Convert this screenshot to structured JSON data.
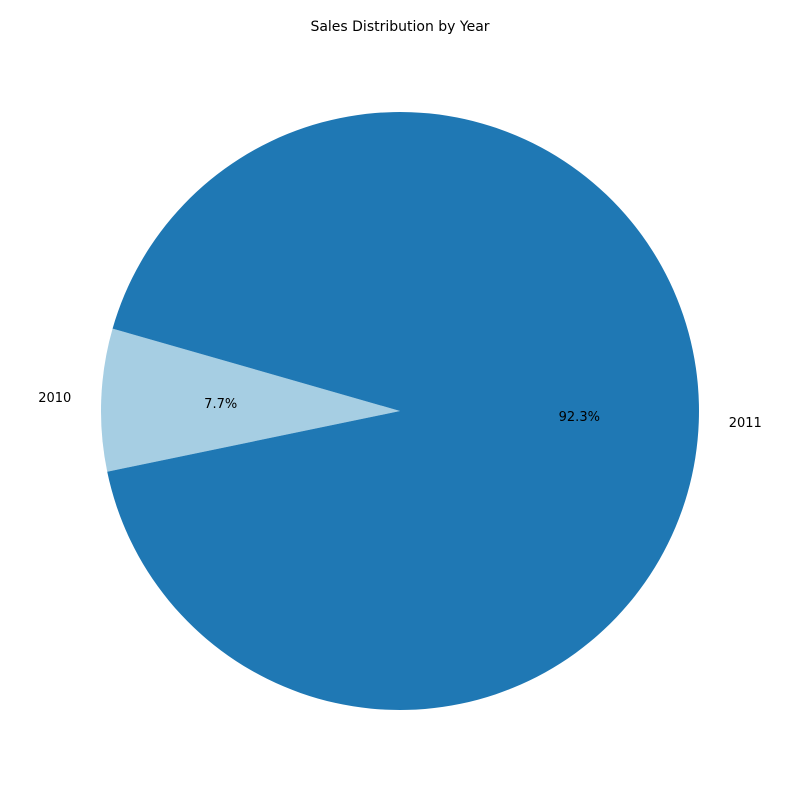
{
  "chart_data": {
    "type": "pie",
    "title": "Sales Distribution by Year",
    "categories": [
      "2010",
      "2011"
    ],
    "values": [
      7.7,
      92.3
    ],
    "percent_labels": [
      "7.7%",
      "92.3%"
    ],
    "colors": [
      "#a6cee3",
      "#1f78b4"
    ],
    "start_angle_deg": 164,
    "direction": "counterclockwise",
    "legend": "none"
  }
}
